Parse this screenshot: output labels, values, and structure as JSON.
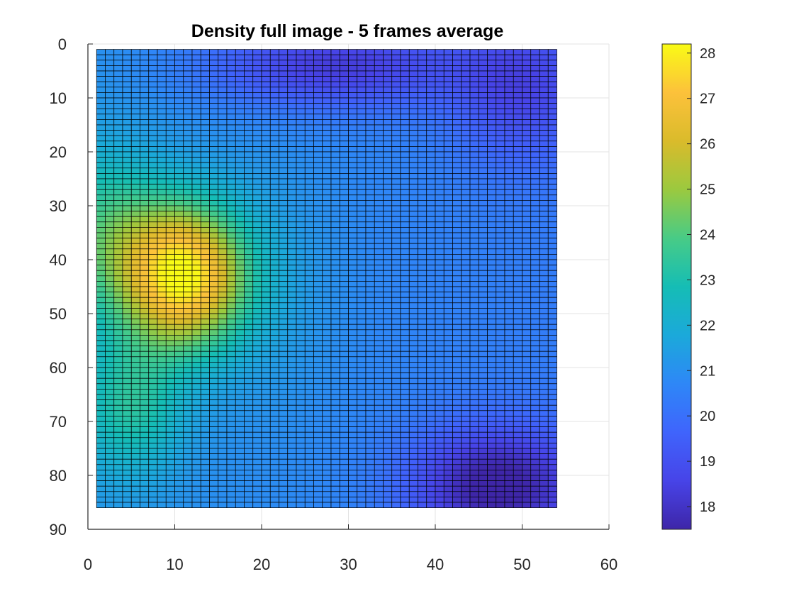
{
  "chart_data": {
    "type": "heatmap",
    "title": "Density full image - 5 frames average",
    "xlabel": "",
    "ylabel": "",
    "x_ticks": [
      0,
      10,
      20,
      30,
      40,
      50,
      60
    ],
    "y_ticks": [
      0,
      10,
      20,
      30,
      40,
      50,
      60,
      70,
      80,
      90
    ],
    "xlim": [
      0,
      60
    ],
    "ylim": [
      0,
      90
    ],
    "y_direction": "reversed",
    "grid": true,
    "mesh_edges": true,
    "grid_x_range": [
      1,
      54
    ],
    "grid_y_range": [
      1,
      86
    ],
    "color_range": [
      17.5,
      28.2
    ],
    "colorbar_ticks": [
      18,
      19,
      20,
      21,
      22,
      23,
      24,
      25,
      26,
      27,
      28
    ],
    "colormap": "parula",
    "colormap_stops": [
      "#3e26a8",
      "#4744e8",
      "#3f64fc",
      "#2e87f7",
      "#1ba9da",
      "#15bdb5",
      "#48cb86",
      "#9bc93f",
      "#dabb2b",
      "#fcc13b",
      "#f9fb15"
    ],
    "features": [
      {
        "kind": "peak",
        "x": 11,
        "y": 43,
        "value": 28.2
      },
      {
        "kind": "minimum",
        "x": 47,
        "y": 82,
        "value": 17.5
      },
      {
        "kind": "minimum",
        "x": 30,
        "y": 5,
        "value": 18.0
      }
    ]
  }
}
